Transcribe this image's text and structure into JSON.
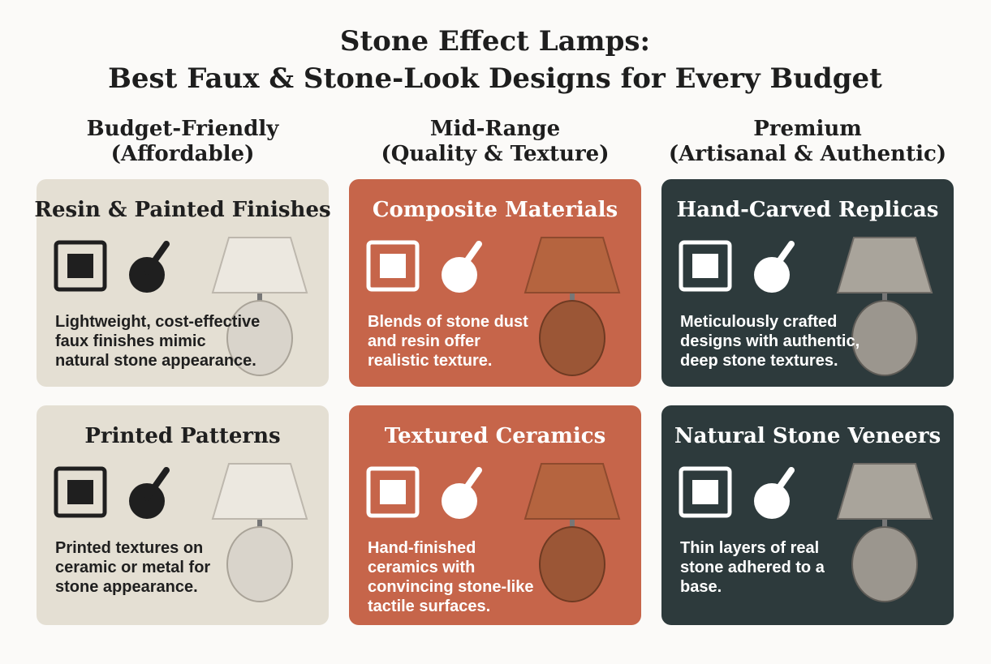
{
  "header": {
    "title_lines": [
      "Stone Effect Lamps:",
      "Best Faux & Stone-Look Designs for Every Budget"
    ]
  },
  "columns": [
    {
      "heading_lines": [
        "Budget-Friendly",
        "(Affordable)"
      ],
      "cards": [
        {
          "title": "Resin & Painted Finishes",
          "text_lines": [
            "Lightweight, cost-effective",
            "faux finishes mimic",
            "natural stone appearance."
          ]
        },
        {
          "title": "Printed Patterns",
          "text_lines": [
            "Printed textures on",
            "ceramic or metal for",
            "stone appearance."
          ]
        }
      ]
    },
    {
      "heading_lines": [
        "Mid-Range",
        "(Quality & Texture)"
      ],
      "cards": [
        {
          "title": "Composite Materials",
          "text_lines": [
            "Blends of stone dust",
            "and resin offer",
            "realistic texture."
          ]
        },
        {
          "title": "Textured Ceramics",
          "text_lines": [
            "Hand-finished",
            "ceramics with",
            "convincing stone-like",
            "tactile surfaces."
          ]
        }
      ]
    },
    {
      "heading_lines": [
        "Premium",
        "(Artisanal & Authentic)"
      ],
      "cards": [
        {
          "title": "Hand-Carved Replicas",
          "text_lines": [
            "Meticulously crafted",
            "designs with authentic,",
            "deep stone textures."
          ]
        },
        {
          "title": "Natural Stone Veneers",
          "text_lines": [
            "Thin layers of real",
            "stone adhered to a",
            "base."
          ]
        }
      ]
    }
  ]
}
